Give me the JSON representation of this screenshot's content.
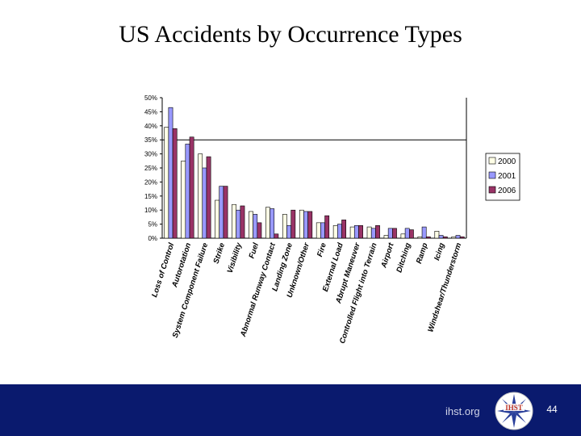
{
  "slide": {
    "title": "US Accidents by Occurrence Types",
    "site": "ihst.org",
    "page_number": "44"
  },
  "chart_data": {
    "type": "bar",
    "title": "",
    "xlabel": "",
    "ylabel": "",
    "ylim": [
      0,
      50
    ],
    "y_ticks": [
      "0%",
      "5%",
      "10%",
      "15%",
      "20%",
      "25%",
      "30%",
      "35%",
      "40%",
      "45%",
      "50%"
    ],
    "gridlines_at": [
      35
    ],
    "legend_position": "right",
    "categories": [
      "Loss of Control",
      "Autorotation",
      "System Component Failure",
      "Strike",
      "Visibility",
      "Fuel",
      "Abnormal Runway Contact",
      "Landing Zone",
      "Unknown/Other",
      "Fire",
      "External Load",
      "Abrupt Maneuver",
      "Controlled Flight into Terrain",
      "Airport",
      "Ditching",
      "Ramp",
      "Icing",
      "Windshear/Thunderstorm"
    ],
    "series": [
      {
        "name": "2000",
        "color": "#ffffe6",
        "values": [
          39.5,
          27.5,
          30,
          13.5,
          12,
          9.5,
          11,
          8.5,
          10,
          5.5,
          4.5,
          4,
          4,
          1,
          1.5,
          0.5,
          2.5,
          0.5
        ]
      },
      {
        "name": "2001",
        "color": "#9999ff",
        "values": [
          46.5,
          33.5,
          25,
          18.5,
          10,
          8.5,
          10.5,
          4.5,
          9.5,
          5.5,
          5,
          4.5,
          3.5,
          3.5,
          3.5,
          4,
          1,
          1
        ]
      },
      {
        "name": "2006",
        "color": "#993366",
        "values": [
          39,
          36,
          29,
          18.5,
          11.5,
          5.5,
          1.5,
          10,
          9.5,
          8,
          6.5,
          4.5,
          4.5,
          3.5,
          3,
          0.5,
          0.5,
          0.5
        ]
      }
    ]
  }
}
